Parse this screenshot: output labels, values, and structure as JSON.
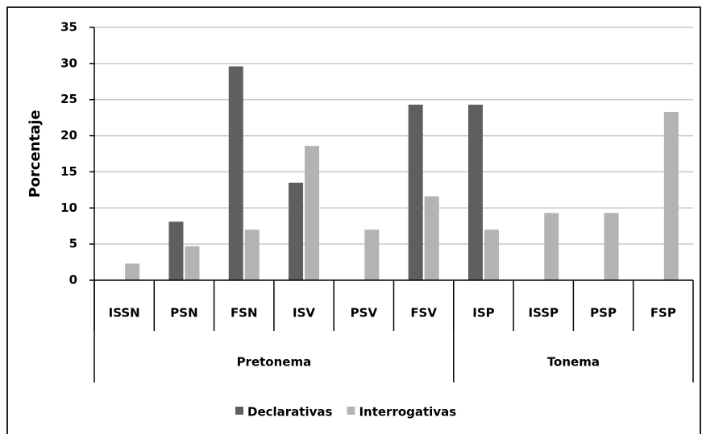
{
  "chart_data": {
    "type": "bar",
    "y_label": "Porcentaje",
    "groups": [
      {
        "name": "Pretonema",
        "categories": [
          "ISSN",
          "PSN",
          "FSN",
          "ISV",
          "PSV",
          "FSV"
        ]
      },
      {
        "name": "Tonema",
        "categories": [
          "ISP",
          "ISSP",
          "PSP",
          "FSP"
        ]
      }
    ],
    "series": [
      {
        "name": "Declarativas",
        "color": "#5f5f5f",
        "values": [
          0,
          8.1,
          29.6,
          13.5,
          0,
          24.3,
          24.3,
          0,
          0,
          0
        ]
      },
      {
        "name": "Interrogativas",
        "color": "#b3b3b3",
        "values": [
          2.3,
          4.7,
          7,
          18.6,
          7,
          11.6,
          7,
          9.3,
          9.3,
          23.3
        ]
      }
    ],
    "ylim": [
      0,
      35
    ],
    "yticks": [
      0,
      5,
      10,
      15,
      20,
      25,
      30,
      35
    ],
    "grid": true,
    "legend": "bottom"
  }
}
